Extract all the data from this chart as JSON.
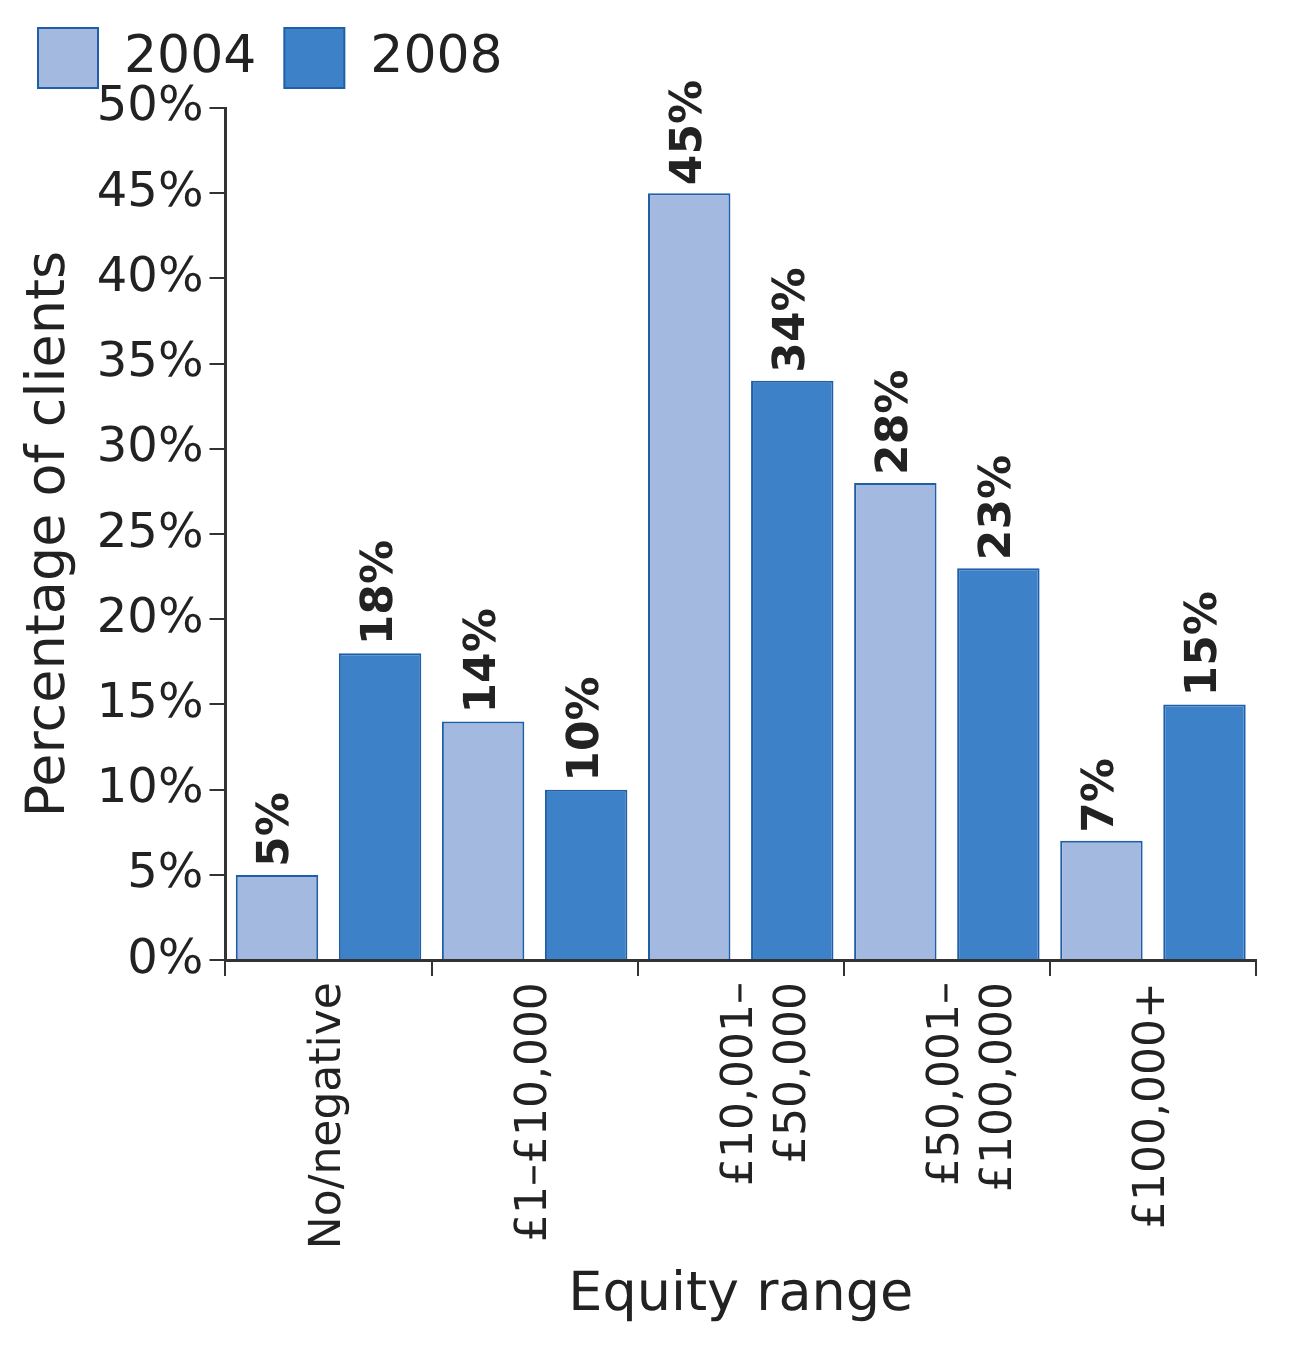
{
  "chart_data": {
    "type": "bar",
    "xlabel": "Equity range",
    "ylabel": "Percentage of clients",
    "categories": [
      "No/negative",
      "£1–£10,000",
      "£10,001–\n£50,000",
      "£50,001–\n£100,000",
      "£100,000+"
    ],
    "series": [
      {
        "name": "2004",
        "color": "#a3b9e0",
        "values": [
          5,
          14,
          45,
          28,
          7
        ]
      },
      {
        "name": "2008",
        "color": "#3d82c8",
        "values": [
          18,
          10,
          34,
          23,
          15
        ]
      }
    ],
    "ylim": [
      0,
      50
    ],
    "yticks": [
      {
        "value": 0,
        "label": "0%"
      },
      {
        "value": 5,
        "label": "5%"
      },
      {
        "value": 10,
        "label": "10%"
      },
      {
        "value": 15,
        "label": "15%"
      },
      {
        "value": 20,
        "label": "20%"
      },
      {
        "value": 25,
        "label": "25%"
      },
      {
        "value": 30,
        "label": "30%"
      },
      {
        "value": 35,
        "label": "35%"
      },
      {
        "value": 40,
        "label": "40%"
      },
      {
        "value": 45,
        "label": "45%"
      },
      {
        "value": 50,
        "label": "50%"
      }
    ],
    "value_labels": [
      [
        "5%",
        "14%",
        "45%",
        "28%",
        "7%"
      ],
      [
        "18%",
        "10%",
        "34%",
        "23%",
        "15%"
      ]
    ],
    "grid": false,
    "legend": "top left"
  }
}
